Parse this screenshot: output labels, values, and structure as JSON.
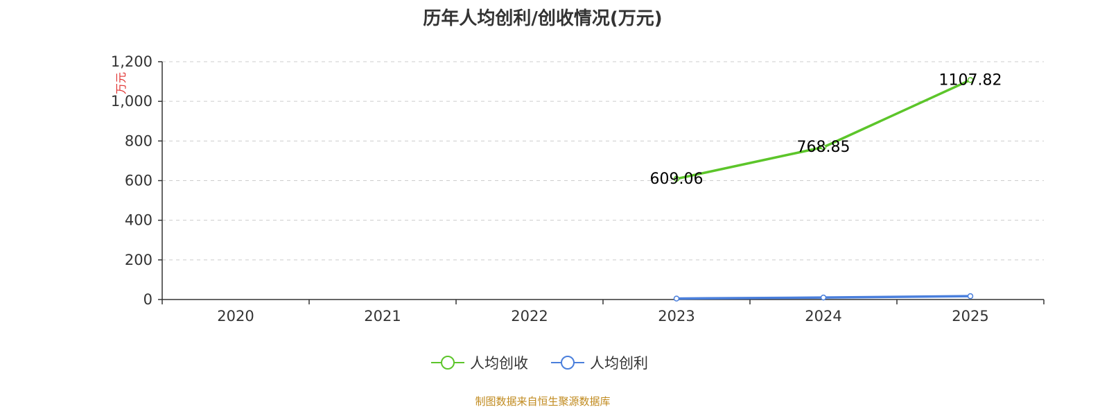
{
  "title": "历年人均创利/创收情况(万元)",
  "source_note": "制图数据来自恒生聚源数据库",
  "colors": {
    "revenue": "#5cc52a",
    "profit": "#4a7fdc",
    "unit_label": "#e0312f",
    "source_note": "#c08a1e",
    "axis": "#333333",
    "grid": "#cccccc"
  },
  "chart_data": {
    "type": "line",
    "categories": [
      "2020",
      "2021",
      "2022",
      "2023",
      "2024",
      "2025"
    ],
    "y_unit_label": "万元",
    "ylim": [
      0,
      1200
    ],
    "yticks": [
      0,
      200,
      400,
      600,
      800,
      1000,
      1200
    ],
    "ytick_labels": [
      "0",
      "200",
      "400",
      "600",
      "800",
      "1,000",
      "1,200"
    ],
    "grid": "horizontal-dashed",
    "legend_position": "bottom-center",
    "series": [
      {
        "name": "人均创收",
        "values": [
          null,
          null,
          null,
          609.06,
          768.85,
          1107.82
        ],
        "data_labels": [
          "",
          "",
          "",
          "609.06",
          "768.85",
          "1107.82"
        ]
      },
      {
        "name": "人均创利",
        "values": [
          null,
          null,
          null,
          5,
          10,
          17
        ]
      }
    ]
  }
}
